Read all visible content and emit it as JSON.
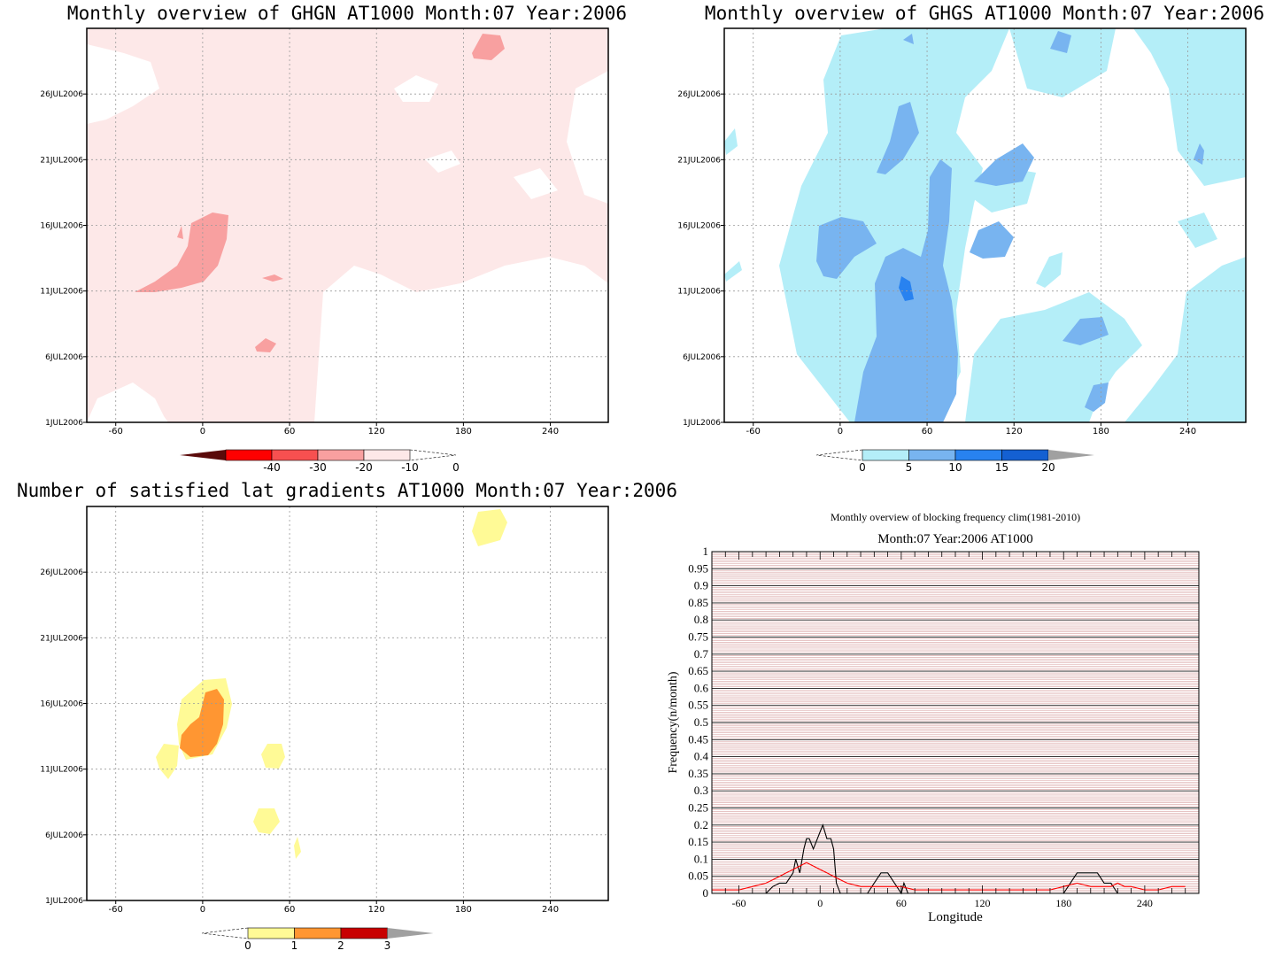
{
  "chart_data": [
    {
      "type": "heatmap",
      "title": "Monthly overview of GHGN AT1000 Month:07 Year:2006",
      "x_ticks": [
        "-60",
        "0",
        "60",
        "120",
        "180",
        "240"
      ],
      "y_ticks": [
        "1JUL2006",
        "6JUL2006",
        "11JUL2006",
        "16JUL2006",
        "21JUL2006",
        "26JUL2006"
      ],
      "xlim": [
        -80,
        280
      ],
      "ylim_days": [
        1,
        31
      ],
      "colorbar": {
        "labels": [
          "-40",
          "-30",
          "-20",
          "-10",
          "0"
        ],
        "colors": [
          "#5a0a0a",
          "#ff0000",
          "#f75050",
          "#f8a0a0",
          "#fde8e8"
        ]
      },
      "background_color": "#fde8e8",
      "grid": true
    },
    {
      "type": "heatmap",
      "title": "Monthly overview of GHGS AT1000 Month:07 Year:2006",
      "x_ticks": [
        "-60",
        "0",
        "60",
        "120",
        "180",
        "240"
      ],
      "y_ticks": [
        "1JUL2006",
        "6JUL2006",
        "11JUL2006",
        "16JUL2006",
        "21JUL2006",
        "26JUL2006"
      ],
      "xlim": [
        -80,
        280
      ],
      "ylim_days": [
        1,
        31
      ],
      "colorbar": {
        "labels": [
          "0",
          "5",
          "10",
          "15",
          "20"
        ],
        "colors": [
          "#b4eef8",
          "#78b4f0",
          "#2882f0",
          "#1460d2",
          "#a0a0a0"
        ]
      },
      "grid": true
    },
    {
      "type": "heatmap",
      "title": "Number of satisfied lat gradients AT1000 Month:07 Year:2006",
      "x_ticks": [
        "-60",
        "0",
        "60",
        "120",
        "180",
        "240"
      ],
      "y_ticks": [
        "1JUL2006",
        "6JUL2006",
        "11JUL2006",
        "16JUL2006",
        "21JUL2006",
        "26JUL2006"
      ],
      "xlim": [
        -80,
        280
      ],
      "ylim_days": [
        1,
        31
      ],
      "colorbar": {
        "labels": [
          "0",
          "1",
          "2",
          "3"
        ],
        "colors": [
          "#fffa96",
          "#ff9632",
          "#c80000",
          "#a0a0a0"
        ]
      },
      "grid": true
    },
    {
      "type": "line",
      "title": "Monthly overview of blocking frequency clim(1981-2010)",
      "subtitle": "Month:07 Year:2006  AT1000",
      "xlabel": "Longitude",
      "ylabel": "Frequency(n/month)",
      "x_ticks": [
        "-60",
        "0",
        "60",
        "120",
        "180",
        "240"
      ],
      "y_ticks": [
        "0",
        "0.05",
        "0.1",
        "0.15",
        "0.2",
        "0.25",
        "0.3",
        "0.35",
        "0.4",
        "0.45",
        "0.5",
        "0.55",
        "0.6",
        "0.65",
        "0.7",
        "0.75",
        "0.8",
        "0.85",
        "0.9",
        "0.95",
        "1"
      ],
      "xlim": [
        -80,
        280
      ],
      "ylim": [
        0,
        1
      ],
      "series": [
        {
          "color": "#000000",
          "x": [
            -80,
            -40,
            -35,
            -30,
            -25,
            -20,
            -18,
            -15,
            -12,
            -10,
            -8,
            -5,
            -2,
            0,
            2,
            5,
            8,
            10,
            12,
            15,
            20,
            25,
            35,
            40,
            45,
            50,
            55,
            60,
            62,
            65,
            70,
            75,
            80,
            85,
            90,
            95,
            100,
            105,
            110,
            120,
            130,
            140,
            150,
            160,
            170,
            180,
            185,
            190,
            195,
            200,
            205,
            210,
            215,
            220,
            230,
            240,
            250,
            260,
            270
          ],
          "y": [
            0,
            0,
            0.02,
            0.03,
            0.03,
            0.06,
            0.1,
            0.06,
            0.13,
            0.16,
            0.16,
            0.13,
            0.16,
            0.18,
            0.2,
            0.16,
            0.16,
            0.13,
            0.03,
            0,
            0,
            0,
            0,
            0.03,
            0.06,
            0.06,
            0.03,
            0,
            0.03,
            0,
            0,
            0,
            0,
            0,
            0,
            0,
            0,
            0,
            0,
            0,
            0,
            0,
            0,
            0,
            0,
            0,
            0.03,
            0.06,
            0.06,
            0.06,
            0.06,
            0.03,
            0.03,
            0,
            0,
            0,
            0,
            0,
            0
          ]
        },
        {
          "color": "#ff0000",
          "x": [
            -80,
            -60,
            -50,
            -40,
            -35,
            -30,
            -25,
            -20,
            -15,
            -10,
            -5,
            0,
            5,
            10,
            15,
            20,
            30,
            40,
            50,
            60,
            70,
            80,
            90,
            100,
            110,
            120,
            130,
            140,
            150,
            160,
            170,
            180,
            190,
            200,
            210,
            215,
            220,
            225,
            230,
            240,
            250,
            260,
            270
          ],
          "y": [
            0.01,
            0.01,
            0.02,
            0.03,
            0.04,
            0.05,
            0.06,
            0.07,
            0.08,
            0.09,
            0.08,
            0.07,
            0.06,
            0.05,
            0.04,
            0.03,
            0.02,
            0.02,
            0.02,
            0.02,
            0.01,
            0.01,
            0.01,
            0.01,
            0.01,
            0.01,
            0.01,
            0.01,
            0.01,
            0.01,
            0.01,
            0.02,
            0.03,
            0.02,
            0.02,
            0.02,
            0.03,
            0.02,
            0.02,
            0.01,
            0.01,
            0.02,
            0.02
          ]
        }
      ]
    }
  ]
}
